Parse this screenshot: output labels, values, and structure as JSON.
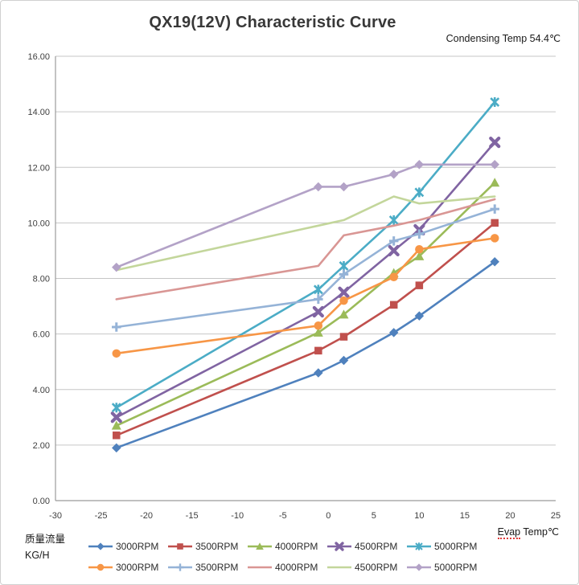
{
  "header": {
    "title": "QX19(12V) Characteristic Curve",
    "subtitle": "Condensing Temp 54.4℃"
  },
  "footer": {
    "y_unit_line1": "质量流量",
    "y_unit_line2": "KG/H",
    "x_axis_word": "Evap",
    "x_axis_rest": " Temp℃"
  },
  "chart_data": {
    "type": "line",
    "title": "QX19(12V) Characteristic Curve",
    "subtitle": "Condensing Temp 54.4℃",
    "xlabel": "Evap Temp℃",
    "ylabel": "质量流量 KG/H",
    "xlim": [
      -30,
      25
    ],
    "ylim": [
      0,
      16
    ],
    "x_ticks": [
      -30,
      -25,
      -20,
      -15,
      -10,
      -5,
      0,
      5,
      10,
      15,
      20,
      25
    ],
    "y_ticks": [
      "0.00",
      "2.00",
      "4.00",
      "6.00",
      "8.00",
      "10.00",
      "12.00",
      "14.00",
      "16.00"
    ],
    "y_tick_values": [
      0,
      2,
      4,
      6,
      8,
      10,
      12,
      14,
      16
    ],
    "grid": "horizontal",
    "legend_position": "bottom-two-rows",
    "x": [
      -23.3,
      -1.1,
      1.7,
      7.2,
      10,
      18.3
    ],
    "series": [
      {
        "name": "3000RPM",
        "color": "#4F81BD",
        "marker": "diamond",
        "values": [
          1.9,
          4.6,
          5.05,
          6.05,
          6.65,
          8.6
        ]
      },
      {
        "name": "3500RPM",
        "color": "#C0504D",
        "marker": "square",
        "values": [
          2.35,
          5.4,
          5.9,
          7.05,
          7.75,
          10.0
        ]
      },
      {
        "name": "4000RPM",
        "color": "#9BBB59",
        "marker": "triangle",
        "values": [
          2.7,
          6.05,
          6.7,
          8.2,
          8.8,
          11.45
        ]
      },
      {
        "name": "4500RPM",
        "color": "#8064A2",
        "marker": "x",
        "values": [
          3.0,
          6.8,
          7.5,
          9.0,
          9.75,
          12.9
        ]
      },
      {
        "name": "5000RPM",
        "color": "#4BACC6",
        "marker": "asterisk",
        "values": [
          3.35,
          7.6,
          8.45,
          10.1,
          11.1,
          14.35
        ]
      },
      {
        "name": "3000RPM",
        "color": "#F79646",
        "marker": "circle",
        "values": [
          5.3,
          6.3,
          7.2,
          8.05,
          9.05,
          9.45
        ]
      },
      {
        "name": "3500RPM",
        "color": "#95B3D7",
        "marker": "plus",
        "values": [
          6.25,
          7.25,
          8.15,
          9.35,
          9.6,
          10.5
        ]
      },
      {
        "name": "4000RPM",
        "color": "#D99694",
        "marker": "none",
        "values": [
          7.25,
          8.45,
          9.55,
          9.9,
          10.1,
          10.85
        ]
      },
      {
        "name": "4500RPM",
        "color": "#C3D69B",
        "marker": "none",
        "values": [
          8.3,
          9.9,
          10.1,
          10.95,
          10.7,
          10.95
        ]
      },
      {
        "name": "5000RPM",
        "color": "#B3A2C7",
        "marker": "diamond",
        "values": [
          8.4,
          11.3,
          11.3,
          11.75,
          12.1,
          12.1
        ]
      }
    ],
    "colors": {
      "gridline": "#c6c6c6",
      "axis": "#9b9b9b",
      "tick_text": "#3f3f3f"
    }
  }
}
